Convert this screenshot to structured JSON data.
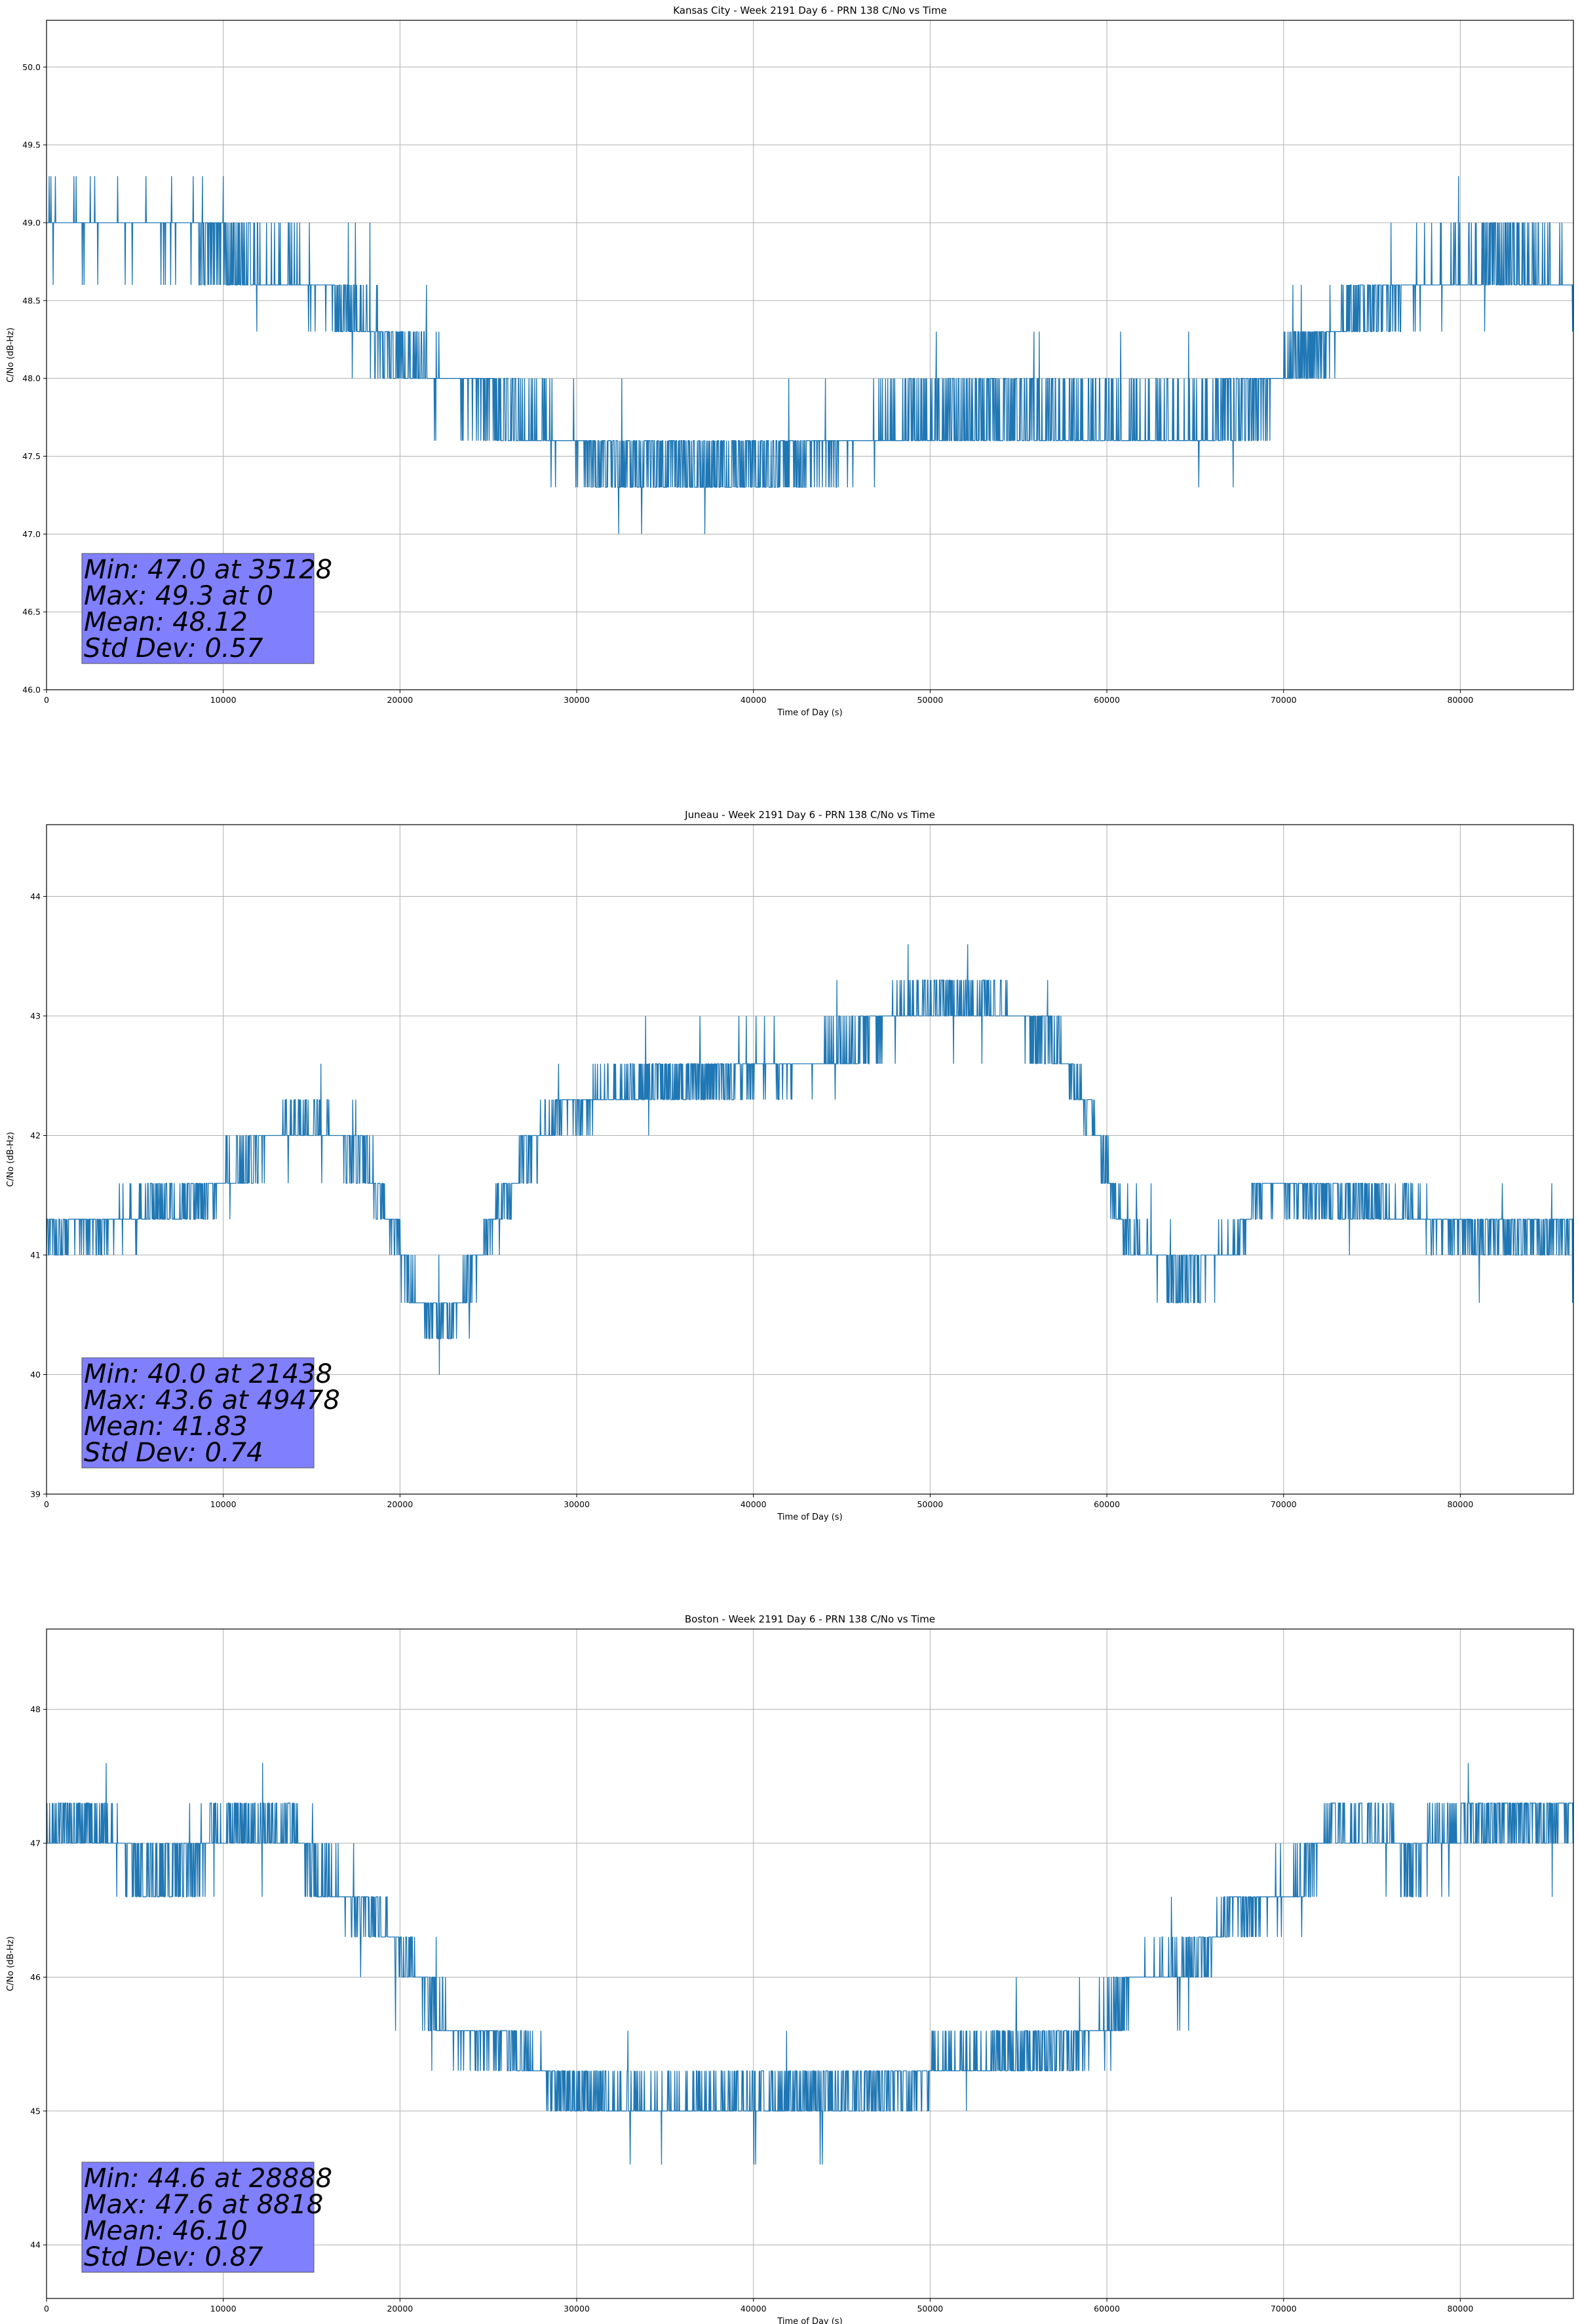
{
  "chart_data": [
    {
      "type": "line",
      "title": "Kansas City - Week 2191 Day 6 - PRN 138 C/No vs Time",
      "xlabel": "Time of Day (s)",
      "ylabel": "C/No (dB-Hz)",
      "xlim": [
        0,
        86400
      ],
      "ylim": [
        46.0,
        50.3
      ],
      "xticks": [
        0,
        10000,
        20000,
        30000,
        40000,
        50000,
        60000,
        70000,
        80000
      ],
      "yticks": [
        "46.0",
        "46.5",
        "47.0",
        "47.5",
        "48.0",
        "48.5",
        "49.0",
        "49.5",
        "50.0"
      ],
      "grid": true,
      "series_color": "#1f77b4",
      "stats": [
        "Min: 47.0 at 35128",
        "Max: 49.3 at 0",
        "Mean: 48.12",
        "Std Dev: 0.57"
      ],
      "stats_box_color": "#8080ff",
      "base_profile": [
        [
          0,
          49.0
        ],
        [
          8000,
          48.95
        ],
        [
          12000,
          48.7
        ],
        [
          16000,
          48.6
        ],
        [
          19000,
          48.2
        ],
        [
          24000,
          47.9
        ],
        [
          28000,
          47.7
        ],
        [
          32000,
          47.5
        ],
        [
          37000,
          47.4
        ],
        [
          43000,
          47.5
        ],
        [
          48000,
          47.7
        ],
        [
          54000,
          47.8
        ],
        [
          60000,
          47.7
        ],
        [
          65000,
          47.7
        ],
        [
          69000,
          47.9
        ],
        [
          72000,
          48.2
        ],
        [
          75000,
          48.5
        ],
        [
          80000,
          48.7
        ],
        [
          83000,
          48.8
        ],
        [
          86400,
          48.6
        ]
      ],
      "levels": [
        47.0,
        47.3,
        47.6,
        48.0,
        48.3,
        48.6,
        49.0,
        49.3
      ]
    },
    {
      "type": "line",
      "title": "Juneau - Week 2191 Day 6 - PRN 138 C/No vs Time",
      "xlabel": "Time of Day (s)",
      "ylabel": "C/No (dB-Hz)",
      "xlim": [
        0,
        86400
      ],
      "ylim": [
        39.0,
        44.6
      ],
      "xticks": [
        0,
        10000,
        20000,
        30000,
        40000,
        50000,
        60000,
        70000,
        80000
      ],
      "yticks": [
        "39",
        "40",
        "41",
        "42",
        "43",
        "44"
      ],
      "grid": true,
      "series_color": "#1f77b4",
      "stats": [
        "Min: 40.0 at 21438",
        "Max: 43.6 at 49478",
        "Mean: 41.83",
        "Std Dev: 0.74"
      ],
      "stats_box_color": "#8080ff",
      "base_profile": [
        [
          0,
          41.2
        ],
        [
          5000,
          41.3
        ],
        [
          9000,
          41.5
        ],
        [
          12000,
          41.9
        ],
        [
          15000,
          42.1
        ],
        [
          18000,
          41.8
        ],
        [
          20000,
          41.0
        ],
        [
          21500,
          40.5
        ],
        [
          23000,
          40.5
        ],
        [
          25000,
          41.2
        ],
        [
          27000,
          41.8
        ],
        [
          29000,
          42.2
        ],
        [
          33000,
          42.4
        ],
        [
          40000,
          42.5
        ],
        [
          45000,
          42.7
        ],
        [
          49000,
          43.1
        ],
        [
          53000,
          43.1
        ],
        [
          57000,
          42.8
        ],
        [
          59000,
          42.2
        ],
        [
          61000,
          41.2
        ],
        [
          64000,
          40.8
        ],
        [
          67000,
          41.0
        ],
        [
          69000,
          41.6
        ],
        [
          72000,
          41.5
        ],
        [
          76000,
          41.4
        ],
        [
          80000,
          41.2
        ],
        [
          86400,
          41.2
        ]
      ],
      "levels": [
        40.0,
        40.3,
        40.6,
        41.0,
        41.3,
        41.6,
        42.0,
        42.3,
        42.6,
        43.0,
        43.3,
        43.6
      ]
    },
    {
      "type": "line",
      "title": "Boston - Week 2191 Day 6 - PRN 138 C/No vs Time",
      "xlabel": "Time of Day (s)",
      "ylabel": "C/No (dB-Hz)",
      "xlim": [
        0,
        86400
      ],
      "ylim": [
        43.6,
        48.6
      ],
      "xticks": [
        0,
        10000,
        20000,
        30000,
        40000,
        50000,
        60000,
        70000,
        80000
      ],
      "yticks": [
        "44",
        "45",
        "46",
        "47",
        "48"
      ],
      "grid": true,
      "series_color": "#1f77b4",
      "stats": [
        "Min: 44.6 at 28888",
        "Max: 47.6 at 8818",
        "Mean: 46.10",
        "Std Dev: 0.87"
      ],
      "stats_box_color": "#8080ff",
      "base_profile": [
        [
          0,
          47.1
        ],
        [
          3500,
          47.1
        ],
        [
          5000,
          46.8
        ],
        [
          8000,
          46.8
        ],
        [
          10000,
          47.1
        ],
        [
          14000,
          47.1
        ],
        [
          15000,
          46.8
        ],
        [
          17000,
          46.6
        ],
        [
          19000,
          46.4
        ],
        [
          21000,
          46.0
        ],
        [
          23000,
          45.6
        ],
        [
          26000,
          45.5
        ],
        [
          28000,
          45.3
        ],
        [
          30000,
          45.1
        ],
        [
          35000,
          45.0
        ],
        [
          40000,
          45.1
        ],
        [
          46000,
          45.1
        ],
        [
          50000,
          45.3
        ],
        [
          54000,
          45.4
        ],
        [
          58000,
          45.5
        ],
        [
          60000,
          45.7
        ],
        [
          62000,
          46.0
        ],
        [
          65000,
          46.1
        ],
        [
          67000,
          46.5
        ],
        [
          70000,
          46.6
        ],
        [
          71500,
          46.8
        ],
        [
          72500,
          47.1
        ],
        [
          76000,
          47.1
        ],
        [
          77000,
          46.8
        ],
        [
          79000,
          47.1
        ],
        [
          82000,
          47.2
        ],
        [
          86400,
          47.2
        ]
      ],
      "levels": [
        44.6,
        45.0,
        45.3,
        45.6,
        46.0,
        46.3,
        46.6,
        47.0,
        47.3,
        47.6
      ]
    }
  ]
}
